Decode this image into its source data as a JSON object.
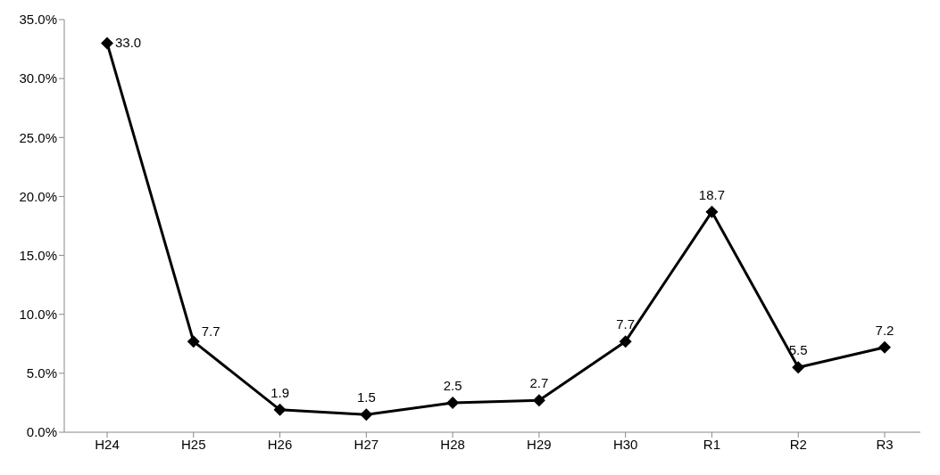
{
  "chart_data": {
    "type": "line",
    "categories": [
      "H24",
      "H25",
      "H26",
      "H27",
      "H28",
      "H29",
      "H30",
      "R1",
      "R2",
      "R3"
    ],
    "series": [
      {
        "color": "#000000",
        "values": [
          33.0,
          7.7,
          1.9,
          1.5,
          2.5,
          2.7,
          7.7,
          18.7,
          5.5,
          7.2
        ],
        "value_labels": [
          "33.0",
          "7.7",
          "1.9",
          "1.5",
          "2.5",
          "2.7",
          "7.7",
          "18.7",
          "5.5",
          "7.2"
        ]
      }
    ],
    "ylim": [
      0,
      35
    ],
    "yticks": [
      {
        "value": 0,
        "label": "0.0%"
      },
      {
        "value": 5,
        "label": "5.0%"
      },
      {
        "value": 10,
        "label": "10.0%"
      },
      {
        "value": 15,
        "label": "15.0%"
      },
      {
        "value": 20,
        "label": "20.0%"
      },
      {
        "value": 25,
        "label": "25.0%"
      },
      {
        "value": 30,
        "label": "30.0%"
      },
      {
        "value": 35,
        "label": "35.0%"
      }
    ],
    "grid": false,
    "legend": false,
    "marker": "diamond",
    "line_style": "solid"
  }
}
